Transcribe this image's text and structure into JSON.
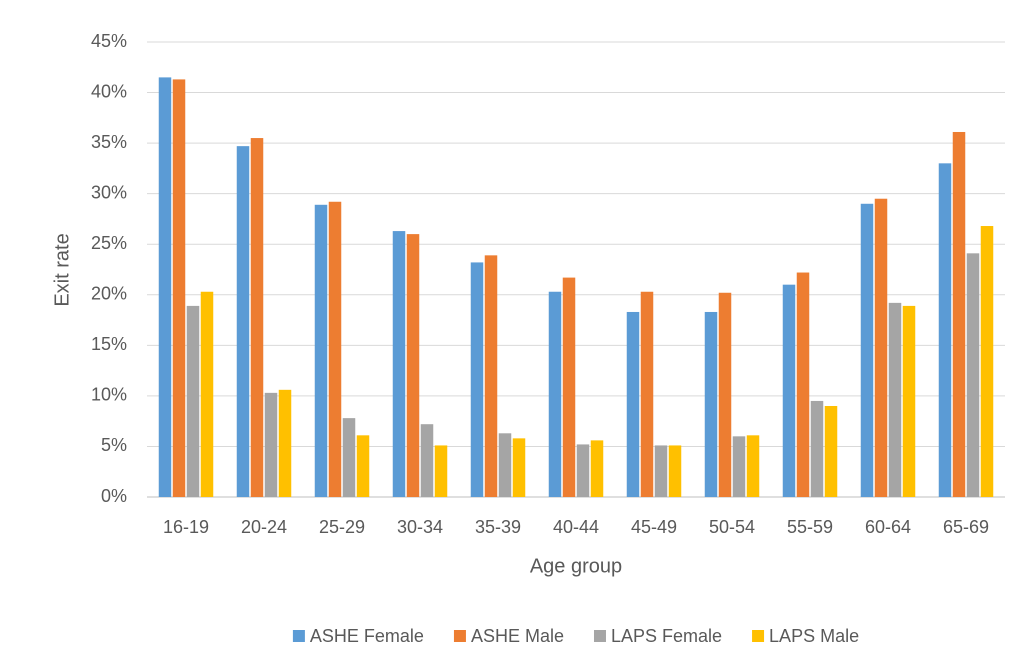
{
  "chart_data": {
    "type": "bar",
    "x_label": "Age group",
    "y_label": "Exit rate",
    "categories": [
      "16-19",
      "20-24",
      "25-29",
      "30-34",
      "35-39",
      "40-44",
      "45-49",
      "50-54",
      "55-59",
      "60-64",
      "65-69"
    ],
    "series": [
      {
        "name": "ASHE Female",
        "color": "#5b9bd5",
        "values": [
          41.5,
          34.7,
          28.9,
          26.3,
          23.2,
          20.3,
          18.3,
          18.3,
          21.0,
          29.0,
          33.0
        ]
      },
      {
        "name": "ASHE Male",
        "color": "#ed7d31",
        "values": [
          41.3,
          35.5,
          29.2,
          26.0,
          23.9,
          21.7,
          20.3,
          20.2,
          22.2,
          29.5,
          36.1
        ]
      },
      {
        "name": "LAPS Female",
        "color": "#a5a5a5",
        "values": [
          18.9,
          10.3,
          7.8,
          7.2,
          6.3,
          5.2,
          5.1,
          6.0,
          9.5,
          19.2,
          24.1
        ]
      },
      {
        "name": "LAPS Male",
        "color": "#ffc000",
        "values": [
          20.3,
          10.6,
          6.1,
          5.1,
          5.8,
          5.6,
          5.1,
          6.1,
          9.0,
          18.9,
          26.8
        ]
      }
    ],
    "ylim": [
      0,
      45
    ],
    "yticks": [
      {
        "value": 0,
        "label": "0%"
      },
      {
        "value": 5,
        "label": "5%"
      },
      {
        "value": 10,
        "label": "10%"
      },
      {
        "value": 15,
        "label": "15%"
      },
      {
        "value": 20,
        "label": "20%"
      },
      {
        "value": 25,
        "label": "25%"
      },
      {
        "value": 30,
        "label": "30%"
      },
      {
        "value": 35,
        "label": "35%"
      },
      {
        "value": 40,
        "label": "40%"
      },
      {
        "value": 45,
        "label": "45%"
      }
    ],
    "grid": true,
    "legend": "bottom"
  }
}
